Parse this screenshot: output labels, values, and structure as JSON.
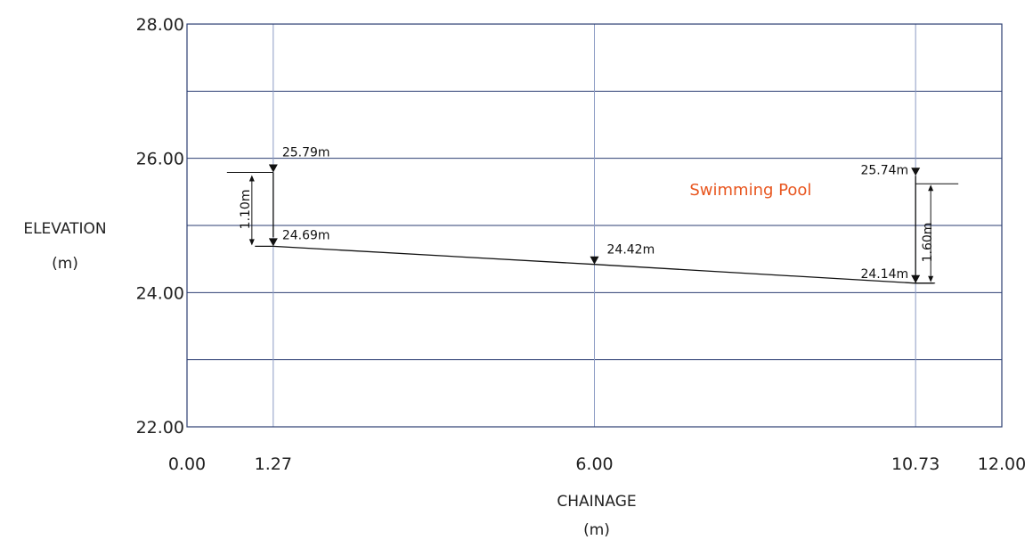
{
  "chart_data": {
    "type": "line",
    "title": "",
    "xlabel": "CHAINAGE",
    "xunit": "(m)",
    "ylabel": "ELEVATION",
    "yunit": "(m)",
    "xlim": [
      0,
      12
    ],
    "ylim": [
      22,
      28
    ],
    "x_ticks": [
      0,
      1.27,
      6,
      10.73,
      12
    ],
    "x_tick_labels": [
      "0.00",
      "1.27",
      "6.00",
      "10.73",
      "12.00"
    ],
    "y_ticks": [
      22,
      24,
      26,
      28
    ],
    "y_tick_labels": [
      "22.00",
      "24.00",
      "26.00",
      "28.00"
    ],
    "grid": true,
    "ground_profile": {
      "x": [
        1.0,
        1.27,
        6.0,
        10.73,
        11.0
      ],
      "y": [
        24.69,
        24.69,
        24.42,
        24.14,
        24.14
      ]
    },
    "points": [
      {
        "x": 1.27,
        "y": 25.79,
        "label": "25.79m"
      },
      {
        "x": 1.27,
        "y": 24.69,
        "label": "24.69m"
      },
      {
        "x": 6.0,
        "y": 24.42,
        "label": "24.42m"
      },
      {
        "x": 10.73,
        "y": 25.74,
        "label": "25.74m"
      },
      {
        "x": 10.73,
        "y": 24.14,
        "label": "24.14m"
      }
    ],
    "dimensions": [
      {
        "x": 1.27,
        "y_top": 25.79,
        "y_bottom": 24.69,
        "label": "1.10m"
      },
      {
        "x": 10.73,
        "y_top": 25.74,
        "y_bottom": 24.14,
        "label": "1.60m"
      }
    ],
    "annotation": {
      "text": "Swimming Pool",
      "x": 8.3,
      "y": 25.45,
      "color": "#e8561f"
    },
    "colors": {
      "grid": "#2b3e72",
      "ink": "#111111",
      "annotation": "#e8561f"
    }
  }
}
